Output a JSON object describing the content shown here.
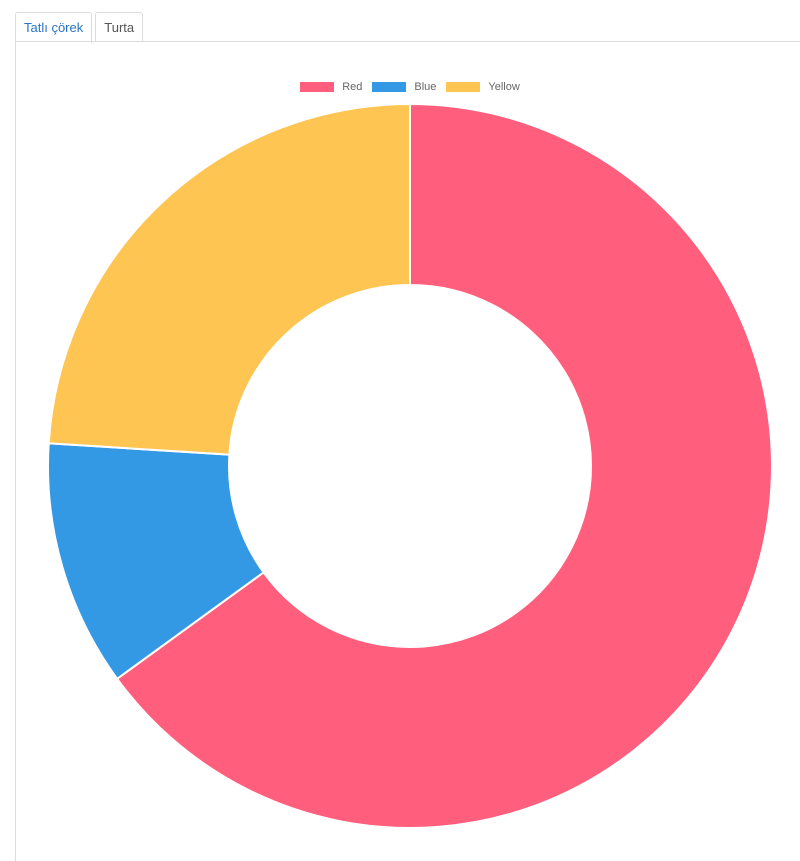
{
  "tabs": [
    {
      "label": "Tatlı çörek",
      "active": true
    },
    {
      "label": "Turta",
      "active": false
    }
  ],
  "chart_data": {
    "type": "doughnut",
    "categories": [
      "Red",
      "Blue",
      "Yellow"
    ],
    "values": [
      65,
      11,
      24
    ],
    "colors": [
      "#ff5e7c",
      "#3499e4",
      "#fec553"
    ],
    "legend_position": "top"
  }
}
